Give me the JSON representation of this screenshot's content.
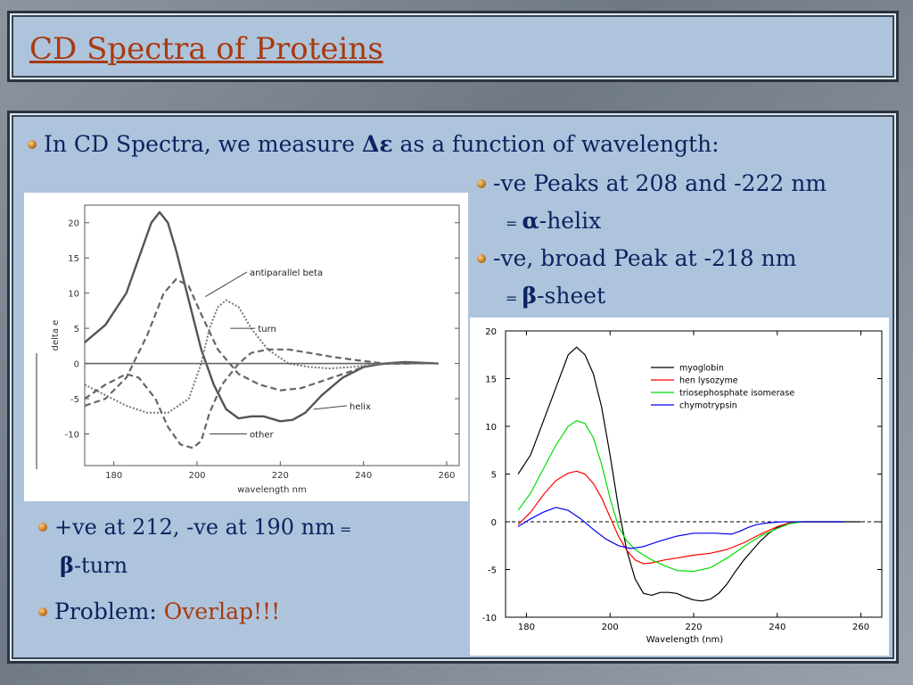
{
  "slide": {
    "title": "CD Spectra of Proteins",
    "bullets": {
      "b1": {
        "text_before": "In CD Spectra, we measure ",
        "symbol": "Δε",
        "text_after": " as a function of wavelength:"
      },
      "b2": {
        "line1": "-ve Peaks at 208 and -222 nm",
        "eq": "= ",
        "symbol": "α",
        "line2_after": "-helix"
      },
      "b3": {
        "line1": "-ve, broad Peak at -218 nm",
        "eq": "= ",
        "symbol": "β",
        "line2_after": "-sheet"
      },
      "b4": {
        "line1": "+ve at 212, -ve at 190 nm",
        "eq": " =",
        "symbol": "β",
        "line2_after": "-turn"
      },
      "b5": {
        "label": "Problem: ",
        "highlight": "Overlap!!!"
      }
    }
  },
  "colors": {
    "title": "#a83a10",
    "text": "#0b2460",
    "panel": "#aec4dc"
  },
  "chart_data": [
    {
      "type": "line",
      "xlabel": "wavelength nm",
      "ylabel": "delta e",
      "xlim": [
        173,
        263
      ],
      "ylim": [
        -14.5,
        22.5
      ],
      "xticks": [
        180,
        200,
        220,
        240,
        260
      ],
      "yticks": [
        20,
        15,
        10,
        5,
        0,
        -5,
        -10
      ],
      "grid": false,
      "legend": "inline labels",
      "series": [
        {
          "name": "helix",
          "style": "solid",
          "x": [
            173,
            178,
            183,
            186,
            189,
            191,
            193,
            195,
            198,
            201,
            204,
            207,
            210,
            213,
            216,
            220,
            223,
            226,
            230,
            235,
            240,
            245,
            250,
            258
          ],
          "y": [
            3,
            5.5,
            10,
            15,
            20,
            21.5,
            20,
            16,
            9,
            2,
            -3,
            -6.5,
            -7.8,
            -7.5,
            -7.5,
            -8.2,
            -8,
            -7,
            -4.5,
            -2,
            -0.5,
            0,
            0.2,
            0
          ]
        },
        {
          "name": "antiparallel beta",
          "style": "dashed",
          "x": [
            173,
            178,
            183,
            188,
            192,
            195,
            198,
            201,
            205,
            210,
            215,
            220,
            225,
            230,
            235,
            240,
            245,
            250
          ],
          "y": [
            -6,
            -5,
            -2,
            4,
            10,
            12,
            11,
            7,
            2,
            -1.5,
            -3,
            -3.8,
            -3.5,
            -2.5,
            -1.5,
            -0.5,
            0,
            0
          ]
        },
        {
          "name": "turn",
          "style": "dotted",
          "x": [
            173,
            178,
            183,
            188,
            193,
            198,
            201,
            203,
            205,
            207,
            210,
            213,
            217,
            222,
            227,
            232,
            237,
            242,
            248,
            255
          ],
          "y": [
            -3,
            -4.5,
            -6,
            -7,
            -7,
            -5,
            0,
            5,
            8,
            9,
            8,
            5,
            2,
            0,
            -0.5,
            -0.7,
            -0.5,
            -0.2,
            0,
            0
          ]
        },
        {
          "name": "other",
          "style": "dashed",
          "x": [
            173,
            178,
            183,
            186,
            190,
            193,
            196,
            199,
            201,
            203,
            206,
            210,
            213,
            217,
            222,
            227,
            232,
            238,
            245,
            252
          ],
          "y": [
            -5,
            -3,
            -1.5,
            -2,
            -5,
            -9,
            -11.5,
            -12,
            -11,
            -7,
            -3,
            0,
            1.5,
            2,
            2,
            1.5,
            1,
            0.5,
            0,
            0
          ]
        },
        {
          "name": "",
          "style": "baseline",
          "x": [
            173,
            258
          ],
          "y": [
            0,
            0
          ]
        }
      ],
      "labels": [
        {
          "text": "antiparallel beta",
          "series": "antiparallel beta"
        },
        {
          "text": "turn",
          "series": "turn"
        },
        {
          "text": "helix",
          "series": "helix"
        },
        {
          "text": "other",
          "series": "other"
        }
      ]
    },
    {
      "type": "line",
      "xlabel": "Wavelength (nm)",
      "ylabel": "",
      "xlim": [
        175,
        265
      ],
      "ylim": [
        -10,
        20
      ],
      "xticks": [
        180,
        200,
        220,
        240,
        260
      ],
      "yticks": [
        20,
        15,
        10,
        5,
        0,
        -5,
        -10
      ],
      "grid": false,
      "legend": "top-right",
      "zero_line": "dashed",
      "series": [
        {
          "name": "myoglobin",
          "color": "#000000",
          "x": [
            178,
            181,
            184,
            187,
            190,
            192,
            194,
            196,
            198,
            200,
            202,
            204,
            206,
            208,
            210,
            212,
            214,
            216,
            218,
            220,
            222,
            224,
            226,
            228,
            230,
            232,
            234,
            236,
            238,
            240,
            243,
            246,
            250,
            256,
            260
          ],
          "y": [
            5,
            7,
            10.5,
            14,
            17.5,
            18.3,
            17.5,
            15.5,
            12,
            7,
            1.5,
            -3,
            -6,
            -7.5,
            -7.7,
            -7.4,
            -7.4,
            -7.5,
            -7.9,
            -8.2,
            -8.3,
            -8.1,
            -7.5,
            -6.5,
            -5.2,
            -4,
            -3,
            -2,
            -1.2,
            -0.6,
            -0.1,
            0,
            0,
            0,
            0
          ]
        },
        {
          "name": "hen lysozyme",
          "color": "#ff0000",
          "x": [
            178,
            181,
            184,
            187,
            190,
            192,
            194,
            196,
            198,
            200,
            202,
            204,
            206,
            208,
            210,
            213,
            216,
            220,
            224,
            228,
            232,
            236,
            240,
            243,
            246,
            250,
            256
          ],
          "y": [
            -0.3,
            1,
            2.8,
            4.3,
            5.1,
            5.3,
            5,
            4,
            2.5,
            0.5,
            -1.5,
            -3,
            -4,
            -4.4,
            -4.3,
            -4,
            -3.8,
            -3.5,
            -3.3,
            -2.9,
            -2.2,
            -1.3,
            -0.5,
            -0.1,
            0,
            0,
            0
          ]
        },
        {
          "name": "triosephosphate isomerase",
          "color": "#00dd00",
          "x": [
            178,
            181,
            184,
            187,
            190,
            192,
            194,
            196,
            198,
            200,
            202,
            204,
            206,
            208,
            210,
            213,
            216,
            220,
            224,
            228,
            232,
            236,
            240,
            243,
            246,
            250,
            256
          ],
          "y": [
            1.2,
            3,
            5.5,
            8,
            10,
            10.6,
            10.3,
            8.8,
            6,
            2.5,
            -0.5,
            -2,
            -2.9,
            -3.5,
            -4,
            -4.6,
            -5.1,
            -5.2,
            -4.8,
            -3.8,
            -2.6,
            -1.5,
            -0.7,
            -0.2,
            0,
            0,
            0
          ]
        },
        {
          "name": "chymotrypsin",
          "color": "#0000ee",
          "x": [
            178,
            181,
            184,
            187,
            190,
            193,
            196,
            199,
            202,
            205,
            208,
            212,
            216,
            220,
            225,
            229,
            231,
            233,
            235,
            238,
            241,
            245,
            250,
            256
          ],
          "y": [
            -0.5,
            0.3,
            1,
            1.5,
            1.2,
            0.3,
            -0.8,
            -1.8,
            -2.5,
            -2.8,
            -2.6,
            -2,
            -1.5,
            -1.2,
            -1.2,
            -1.3,
            -1,
            -0.6,
            -0.3,
            -0.1,
            0,
            0,
            0,
            0
          ]
        }
      ]
    }
  ]
}
